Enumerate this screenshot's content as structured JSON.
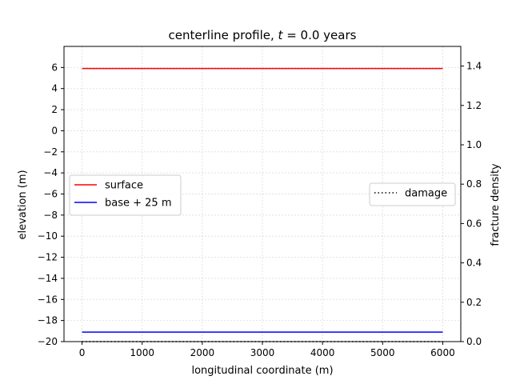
{
  "chart_data": {
    "type": "line",
    "title": "centerline profile, t = 0.0 years",
    "title_parts": {
      "prefix": "centerline profile, ",
      "var": "t",
      "suffix": " = 0.0 years"
    },
    "xlabel": "longitudinal coordinate (m)",
    "ylabel": "elevation (m)",
    "ylabel_right": "fracture density",
    "xlim": [
      -300,
      6300
    ],
    "ylim": [
      -20,
      8
    ],
    "ylim_right": [
      0,
      1.5
    ],
    "xticks": [
      0,
      1000,
      2000,
      3000,
      4000,
      5000,
      6000
    ],
    "yticks": [
      -20,
      -18,
      -16,
      -14,
      -12,
      -10,
      -8,
      -6,
      -4,
      -2,
      0,
      2,
      4,
      6
    ],
    "yticks_right": [
      0.0,
      0.2,
      0.4,
      0.6,
      0.8,
      1.0,
      1.2,
      1.4
    ],
    "grid": true,
    "series": [
      {
        "name": "surface",
        "axis": "left",
        "color": "#ff0000",
        "style": "solid",
        "x": [
          0,
          6000
        ],
        "y": [
          5.9,
          5.9
        ]
      },
      {
        "name": "base + 25 m",
        "axis": "left",
        "color": "#0000ff",
        "style": "solid",
        "x": [
          0,
          6000
        ],
        "y": [
          -19.1,
          -19.1
        ]
      },
      {
        "name": "damage",
        "axis": "right",
        "color": "#000000",
        "style": "dotted",
        "x": [
          0,
          6000
        ],
        "y": [
          0.0,
          0.0
        ]
      }
    ],
    "legends": [
      {
        "placement": "center-left",
        "entries": [
          "surface",
          "base + 25 m"
        ]
      },
      {
        "placement": "center-right",
        "entries": [
          "damage"
        ]
      }
    ]
  }
}
